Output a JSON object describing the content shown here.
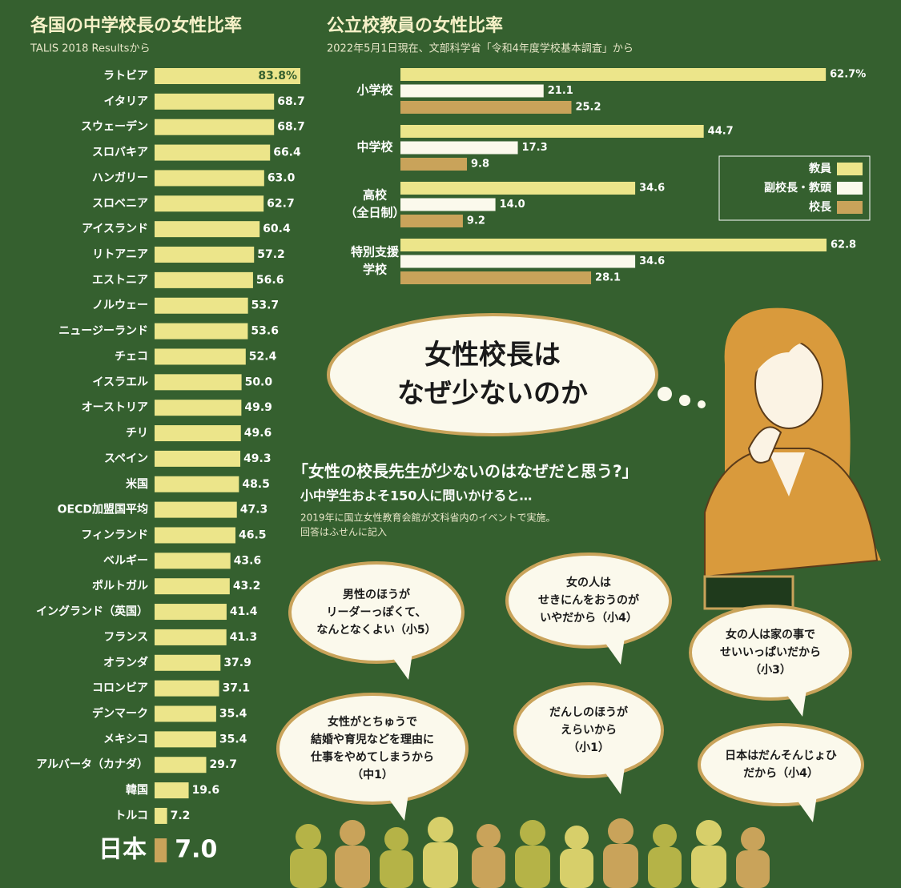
{
  "chart_data": [
    {
      "type": "bar",
      "orientation": "horizontal",
      "title": "各国の中学校長の女性比率",
      "subtitle": "TALIS 2018 Resultsから",
      "categories": [
        "ラトビア",
        "イタリア",
        "スウェーデン",
        "スロバキア",
        "ハンガリー",
        "スロベニア",
        "アイスランド",
        "リトアニア",
        "エストニア",
        "ノルウェー",
        "ニュージーランド",
        "チェコ",
        "イスラエル",
        "オーストリア",
        "チリ",
        "スペイン",
        "米国",
        "OECD加盟国平均",
        "フィンランド",
        "ベルギー",
        "ポルトガル",
        "イングランド（英国）",
        "フランス",
        "オランダ",
        "コロンビア",
        "デンマーク",
        "メキシコ",
        "アルバータ（カナダ）",
        "韓国",
        "トルコ",
        "日本"
      ],
      "values": [
        83.8,
        68.7,
        68.7,
        66.4,
        63.0,
        62.7,
        60.4,
        57.2,
        56.6,
        53.7,
        53.6,
        52.4,
        50.0,
        49.9,
        49.6,
        49.3,
        48.5,
        47.3,
        46.5,
        43.6,
        43.2,
        41.4,
        41.3,
        37.9,
        37.1,
        35.4,
        35.4,
        29.7,
        19.6,
        7.2,
        7.0
      ],
      "value_labels": [
        "83.8%",
        "68.7",
        "68.7",
        "66.4",
        "63.0",
        "62.7",
        "60.4",
        "57.2",
        "56.6",
        "53.7",
        "53.6",
        "52.4",
        "50.0",
        "49.9",
        "49.6",
        "49.3",
        "48.5",
        "47.3",
        "46.5",
        "43.6",
        "43.2",
        "41.4",
        "41.3",
        "37.9",
        "37.1",
        "35.4",
        "35.4",
        "29.7",
        "19.6",
        "7.2",
        "7.0"
      ],
      "colors": [
        "#ece58a",
        "#ece58a",
        "#ece58a",
        "#ece58a",
        "#ece58a",
        "#ece58a",
        "#ece58a",
        "#ece58a",
        "#ece58a",
        "#ece58a",
        "#ece58a",
        "#ece58a",
        "#ece58a",
        "#ece58a",
        "#ece58a",
        "#ece58a",
        "#ece58a",
        "#ece58a",
        "#ece58a",
        "#ece58a",
        "#ece58a",
        "#ece58a",
        "#ece58a",
        "#ece58a",
        "#ece58a",
        "#ece58a",
        "#ece58a",
        "#ece58a",
        "#ece58a",
        "#ece58a",
        "#c9a35a"
      ]
    },
    {
      "type": "bar",
      "orientation": "horizontal",
      "title": "公立校教員の女性比率",
      "subtitle": "2022年5月1日現在、文部科学省「令和4年度学校基本調査」から",
      "categories": [
        [
          "小学校"
        ],
        [
          "中学校"
        ],
        [
          "高校",
          "（全日制）"
        ],
        [
          "特別支援",
          "学校"
        ]
      ],
      "series": [
        {
          "name": "教員",
          "color": "#ece58a",
          "values": [
            62.7,
            44.7,
            34.6,
            62.8
          ],
          "value_labels": [
            "62.7%",
            "44.7",
            "34.6",
            "62.8"
          ]
        },
        {
          "name": "副校長・教頭",
          "color": "#fbf9ec",
          "values": [
            21.1,
            17.3,
            14.0,
            34.6
          ],
          "value_labels": [
            "21.1",
            "17.3",
            "14.0",
            "34.6"
          ]
        },
        {
          "name": "校長",
          "color": "#c9a35a",
          "values": [
            25.2,
            9.8,
            9.2,
            28.1
          ],
          "value_labels": [
            "25.2",
            "9.8",
            "9.2",
            "28.1"
          ]
        }
      ],
      "legend": "right"
    }
  ],
  "callouts": {
    "thought": [
      "女性校長は",
      "なぜ少ないのか"
    ],
    "question": "「女性の校長先生が少ないのはなぜだと思う?」",
    "lead": "小中学生およそ150人に問いかけると…",
    "note": [
      "2019年に国立女性教育会館が文科省内のイベントで実施。",
      "回答はふせんに記入"
    ],
    "bubbles": [
      [
        "男性のほうが",
        "リーダーっぽくて、",
        "なんとなくよい（小5）"
      ],
      [
        "女の人は",
        "せきにんをおうのが",
        "いやだから（小4）"
      ],
      [
        "女の人は家の事で",
        "せいいっぱいだから",
        "（小3）"
      ],
      [
        "女性がとちゅうで",
        "結婚や育児などを理由に",
        "仕事をやめてしまうから",
        "（中1）"
      ],
      [
        "だんしのほうが",
        "えらいから",
        "（小1）"
      ],
      [
        "日本はだんそんじょひ",
        "だから（小4）"
      ]
    ]
  }
}
